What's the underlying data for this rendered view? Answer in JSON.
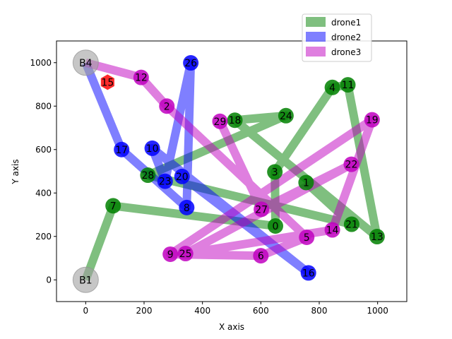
{
  "chart_data": {
    "type": "scatter",
    "title": "",
    "xlabel": "X axis",
    "ylabel": "Y axis",
    "xlim": [
      -100,
      1100
    ],
    "ylim": [
      -100,
      1100
    ],
    "xticks": [
      0,
      200,
      400,
      600,
      800,
      1000
    ],
    "yticks": [
      0,
      200,
      400,
      600,
      800,
      1000
    ],
    "grid": false,
    "legend_position": "top-right",
    "series": [
      {
        "name": "drone1",
        "color": "#008000",
        "route": [
          "B1",
          "7",
          "0",
          "3",
          "4",
          "11",
          "13",
          "18",
          "24",
          "28",
          "21",
          "1"
        ]
      },
      {
        "name": "drone2",
        "color": "#0000ff",
        "route": [
          "B4",
          "17",
          "8",
          "26",
          "23",
          "10",
          "16",
          "20"
        ]
      },
      {
        "name": "drone3",
        "color": "#bf00bf",
        "route": [
          "B4",
          "12",
          "2",
          "5",
          "6",
          "9",
          "19",
          "14",
          "25",
          "22",
          "27",
          "29"
        ]
      }
    ],
    "bases": [
      {
        "label": "B4",
        "x": 0,
        "y": 1000
      },
      {
        "label": "B1",
        "x": 0,
        "y": 0
      }
    ],
    "special_points": [
      {
        "label": "15",
        "x": 75,
        "y": 910,
        "color": "#ff2020"
      }
    ],
    "points": [
      {
        "label": "0",
        "x": 650,
        "y": 248,
        "color": "#008000"
      },
      {
        "label": "1",
        "x": 755,
        "y": 448,
        "color": "#008000"
      },
      {
        "label": "2",
        "x": 278,
        "y": 800,
        "color": "#bf00bf"
      },
      {
        "label": "3",
        "x": 648,
        "y": 497,
        "color": "#008000"
      },
      {
        "label": "4",
        "x": 845,
        "y": 886,
        "color": "#008000"
      },
      {
        "label": "5",
        "x": 757,
        "y": 196,
        "color": "#bf00bf"
      },
      {
        "label": "6",
        "x": 600,
        "y": 111,
        "color": "#bf00bf"
      },
      {
        "label": "7",
        "x": 94,
        "y": 341,
        "color": "#008000"
      },
      {
        "label": "8",
        "x": 346,
        "y": 333,
        "color": "#0000ff"
      },
      {
        "label": "9",
        "x": 290,
        "y": 118,
        "color": "#bf00bf"
      },
      {
        "label": "10",
        "x": 228,
        "y": 606,
        "color": "#0000ff"
      },
      {
        "label": "11",
        "x": 898,
        "y": 898,
        "color": "#008000"
      },
      {
        "label": "12",
        "x": 190,
        "y": 932,
        "color": "#bf00bf"
      },
      {
        "label": "13",
        "x": 998,
        "y": 199,
        "color": "#008000"
      },
      {
        "label": "14",
        "x": 845,
        "y": 230,
        "color": "#bf00bf"
      },
      {
        "label": "16",
        "x": 763,
        "y": 32,
        "color": "#0000ff"
      },
      {
        "label": "17",
        "x": 123,
        "y": 600,
        "color": "#0000ff"
      },
      {
        "label": "18",
        "x": 511,
        "y": 735,
        "color": "#008000"
      },
      {
        "label": "19",
        "x": 981,
        "y": 737,
        "color": "#bf00bf"
      },
      {
        "label": "20",
        "x": 330,
        "y": 476,
        "color": "#0000ff"
      },
      {
        "label": "21",
        "x": 911,
        "y": 256,
        "color": "#008000"
      },
      {
        "label": "22",
        "x": 910,
        "y": 532,
        "color": "#bf00bf"
      },
      {
        "label": "23",
        "x": 272,
        "y": 454,
        "color": "#0000ff"
      },
      {
        "label": "24",
        "x": 686,
        "y": 756,
        "color": "#008000"
      },
      {
        "label": "25",
        "x": 342,
        "y": 121,
        "color": "#bf00bf"
      },
      {
        "label": "26",
        "x": 360,
        "y": 999,
        "color": "#0000ff"
      },
      {
        "label": "27",
        "x": 602,
        "y": 325,
        "color": "#bf00bf"
      },
      {
        "label": "28",
        "x": 213,
        "y": 482,
        "color": "#008000"
      },
      {
        "label": "29",
        "x": 460,
        "y": 730,
        "color": "#bf00bf"
      }
    ]
  }
}
